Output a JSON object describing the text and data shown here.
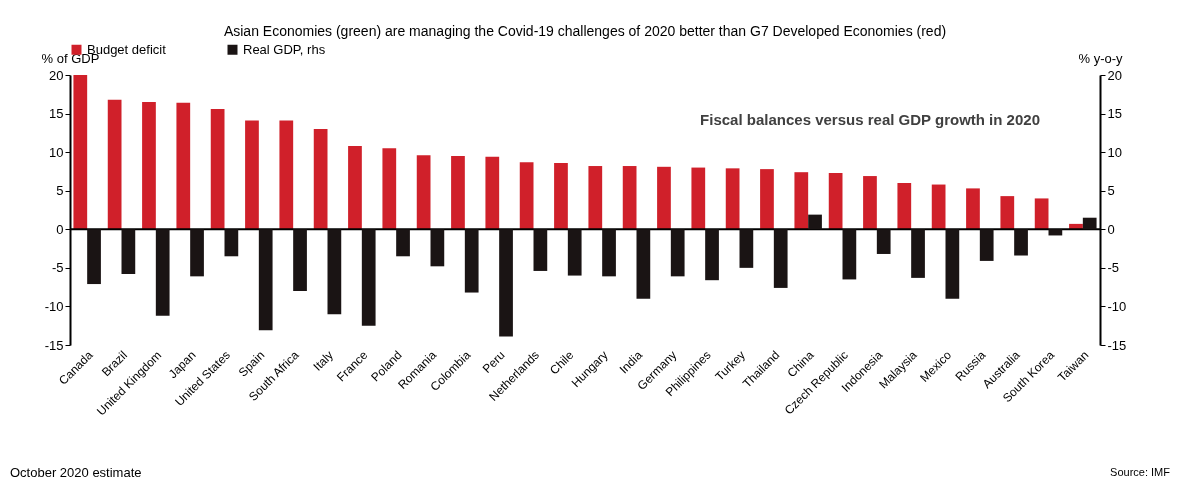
{
  "chart_data": {
    "type": "bar",
    "title": "Asian Economies (green) are managing the Covid-19 challenges of 2020 better than G7 Developed Economies (red)",
    "subtitle": "Fiscal balances versus real GDP growth in 2020",
    "ylabel": "% of GDP",
    "y2label": "% y-o-y",
    "categories": [
      "Canada",
      "Brazil",
      "United Kingdom",
      "Japan",
      "United States",
      "Spain",
      "South Africa",
      "Italy",
      "France",
      "Poland",
      "Romania",
      "Colombia",
      "Peru",
      "Netherlands",
      "Chile",
      "Hungary",
      "India",
      "Germany",
      "Philippines",
      "Turkey",
      "Thailand",
      "China",
      "Czech Republic",
      "Indonesia",
      "Malaysia",
      "Mexico",
      "Russia",
      "Australia",
      "South Korea",
      "Taiwan"
    ],
    "series": [
      {
        "name": "Budget deficit",
        "color": "#d0202a",
        "values": [
          20.0,
          16.8,
          16.5,
          16.4,
          15.6,
          14.1,
          14.1,
          13.0,
          10.8,
          10.5,
          9.6,
          9.5,
          9.4,
          8.7,
          8.6,
          8.2,
          8.2,
          8.1,
          8.0,
          7.9,
          7.8,
          7.4,
          7.3,
          6.9,
          6.0,
          5.8,
          5.3,
          4.3,
          4.0,
          0.7
        ]
      },
      {
        "name": "Real GDP, rhs",
        "color": "#1a1414",
        "axis": "y2",
        "values": [
          -7.1,
          -5.8,
          -11.2,
          -6.1,
          -3.5,
          -13.1,
          -8.0,
          -11.0,
          -12.5,
          -3.5,
          -4.8,
          -8.2,
          -13.9,
          -5.4,
          -6.0,
          -6.1,
          -9.0,
          -6.1,
          -6.6,
          -5.0,
          -7.6,
          1.9,
          -6.5,
          -3.2,
          -6.3,
          -9.0,
          -4.1,
          -3.4,
          -0.8,
          1.5
        ]
      }
    ],
    "ylim": [
      -15,
      20
    ],
    "yticks": [
      -15,
      -10,
      -5,
      0,
      5,
      10,
      15,
      20
    ],
    "y2lim": [
      -15,
      20
    ],
    "y2ticks": [
      -15,
      -10,
      -5,
      0,
      5,
      10,
      15,
      20
    ],
    "ref_lines": [
      {
        "axis": "y",
        "value": 0,
        "color": "#000000"
      }
    ],
    "grid": false,
    "legend": "top",
    "annotations": [
      "October 2020 estimate",
      "Source: IMF"
    ]
  }
}
